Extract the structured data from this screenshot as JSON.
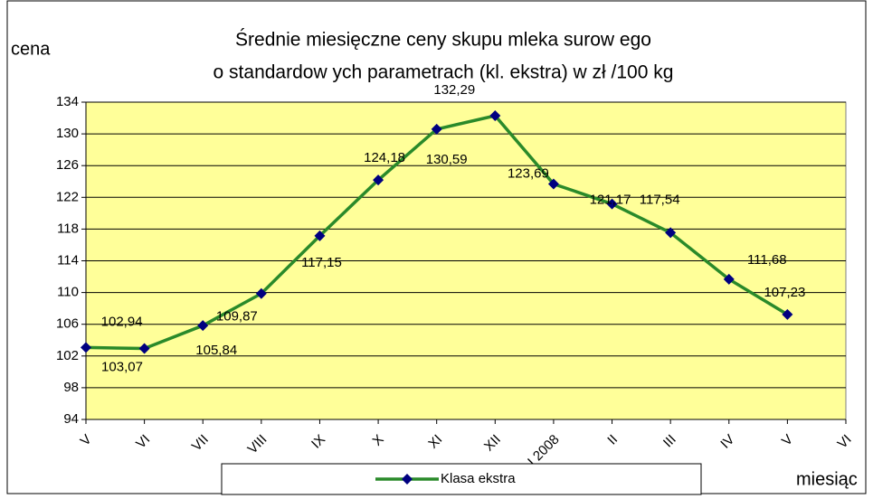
{
  "chart_data": {
    "type": "line",
    "title": [
      "Średnie miesięczne ceny skupu mleka surow ego",
      "o standardow ych parametrach (kl. ekstra) w  zł /100 kg"
    ],
    "y_label": "cena",
    "x_label": "miesiąc",
    "categories": [
      "V",
      "VI",
      "VII",
      "VIII",
      "IX",
      "X",
      "XI",
      "XII",
      "I 2008",
      "II",
      "III",
      "IV",
      "V",
      "VI"
    ],
    "series": [
      {
        "name": "Klasa ekstra",
        "color": "#2a8a2a",
        "marker_color": "#000080",
        "values": [
          103.07,
          102.94,
          105.84,
          109.87,
          117.15,
          124.18,
          130.59,
          132.29,
          123.69,
          121.17,
          117.54,
          111.68,
          107.23,
          null
        ],
        "value_labels": [
          "103,07",
          "102,94",
          "105,84",
          "109,87",
          "117,15",
          "124,18",
          "130,59",
          "132,29",
          "123,69",
          "121,17",
          "117,54",
          "111,68",
          "107,23",
          null
        ]
      }
    ],
    "ylim": [
      94,
      134
    ],
    "yticks": [
      94,
      98,
      102,
      106,
      110,
      114,
      118,
      122,
      126,
      130,
      134
    ],
    "grid": true,
    "plot_background": "#ffff99",
    "legend": "bottom"
  }
}
